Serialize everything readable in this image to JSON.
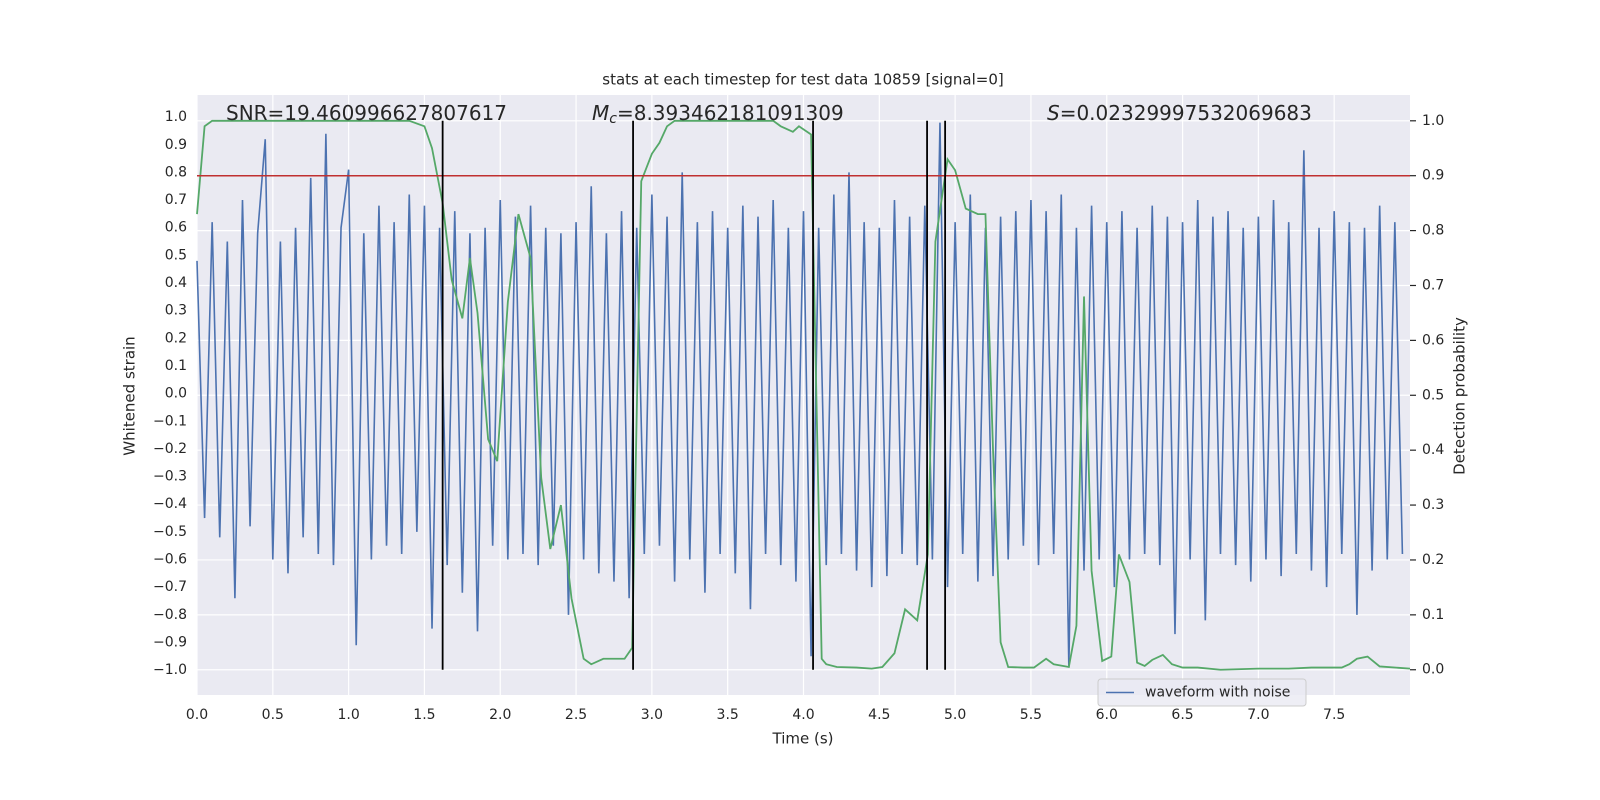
{
  "chart_data": {
    "type": "line",
    "title": "stats at each timestep for test data 10859 [signal=0]",
    "xlabel": "Time (s)",
    "ylabel": "Whitened strain",
    "y2label": "Detection probability",
    "annotations": [
      {
        "text": "SNR=19.460996627807617"
      },
      {
        "symbol": "M",
        "subscript": "c",
        "text": "=8.393462181091309"
      },
      {
        "symbol": "S",
        "text": "=0.02329997532069683"
      }
    ],
    "xlim": [
      0,
      8.0
    ],
    "ylim": [
      -1.09,
      1.08
    ],
    "y2lim": [
      -0.046,
      1.047
    ],
    "xticks": [
      {
        "value": 0,
        "label": "0.0"
      },
      {
        "value": 0.5,
        "label": "0.5"
      },
      {
        "value": 1,
        "label": "1.0"
      },
      {
        "value": 1.5,
        "label": "1.5"
      },
      {
        "value": 2,
        "label": "2.0"
      },
      {
        "value": 2.5,
        "label": "2.5"
      },
      {
        "value": 3,
        "label": "3.0"
      },
      {
        "value": 3.5,
        "label": "3.5"
      },
      {
        "value": 4,
        "label": "4.0"
      },
      {
        "value": 4.5,
        "label": "4.5"
      },
      {
        "value": 5,
        "label": "5.0"
      },
      {
        "value": 5.5,
        "label": "5.5"
      },
      {
        "value": 6,
        "label": "6.0"
      },
      {
        "value": 6.5,
        "label": "6.5"
      },
      {
        "value": 7,
        "label": "7.0"
      },
      {
        "value": 7.5,
        "label": "7.5"
      }
    ],
    "yticks": [
      {
        "value": -1,
        "label": "−1.0"
      },
      {
        "value": -0.9,
        "label": "−0.9"
      },
      {
        "value": -0.8,
        "label": "−0.8"
      },
      {
        "value": -0.7,
        "label": "−0.7"
      },
      {
        "value": -0.6,
        "label": "−0.6"
      },
      {
        "value": -0.5,
        "label": "−0.5"
      },
      {
        "value": -0.4,
        "label": "−0.4"
      },
      {
        "value": -0.3,
        "label": "−0.3"
      },
      {
        "value": -0.2,
        "label": "−0.2"
      },
      {
        "value": -0.1,
        "label": "−0.1"
      },
      {
        "value": 0,
        "label": "0.0"
      },
      {
        "value": 0.1,
        "label": "0.1"
      },
      {
        "value": 0.2,
        "label": "0.2"
      },
      {
        "value": 0.3,
        "label": "0.3"
      },
      {
        "value": 0.4,
        "label": "0.4"
      },
      {
        "value": 0.5,
        "label": "0.5"
      },
      {
        "value": 0.6,
        "label": "0.6"
      },
      {
        "value": 0.7,
        "label": "0.7"
      },
      {
        "value": 0.8,
        "label": "0.8"
      },
      {
        "value": 0.9,
        "label": "0.9"
      },
      {
        "value": 1,
        "label": "1.0"
      }
    ],
    "y2ticks": [
      {
        "value": 0,
        "label": "0.0"
      },
      {
        "value": 0.1,
        "label": "0.1"
      },
      {
        "value": 0.2,
        "label": "0.2"
      },
      {
        "value": 0.3,
        "label": "0.3"
      },
      {
        "value": 0.4,
        "label": "0.4"
      },
      {
        "value": 0.5,
        "label": "0.5"
      },
      {
        "value": 0.6,
        "label": "0.6"
      },
      {
        "value": 0.7,
        "label": "0.7"
      },
      {
        "value": 0.8,
        "label": "0.8"
      },
      {
        "value": 0.9,
        "label": "0.9"
      },
      {
        "value": 1,
        "label": "1.0"
      }
    ],
    "grid": true,
    "legend": "lower right",
    "series": [
      {
        "name": "waveform with noise",
        "color": "#4c72b0",
        "x": [
          0,
          0.05,
          0.1,
          0.15,
          0.2,
          0.25,
          0.3,
          0.35,
          0.4,
          0.45,
          0.5,
          0.55,
          0.6,
          0.65,
          0.7,
          0.75,
          0.8,
          0.85,
          0.9,
          0.95,
          1,
          1.05,
          1.1,
          1.15,
          1.2,
          1.25,
          1.3,
          1.35,
          1.4,
          1.45,
          1.5,
          1.55,
          1.6,
          1.65,
          1.7,
          1.75,
          1.8,
          1.85,
          1.9,
          1.95,
          2,
          2.05,
          2.1,
          2.15,
          2.2,
          2.25,
          2.3,
          2.35,
          2.4,
          2.45,
          2.5,
          2.55,
          2.6,
          2.65,
          2.7,
          2.75,
          2.8,
          2.85,
          2.9,
          2.95,
          3,
          3.05,
          3.1,
          3.15,
          3.2,
          3.25,
          3.3,
          3.35,
          3.4,
          3.45,
          3.5,
          3.55,
          3.6,
          3.65,
          3.7,
          3.75,
          3.8,
          3.85,
          3.9,
          3.95,
          4,
          4.05,
          4.1,
          4.15,
          4.2,
          4.25,
          4.3,
          4.35,
          4.4,
          4.45,
          4.5,
          4.55,
          4.6,
          4.65,
          4.7,
          4.75,
          4.8,
          4.85,
          4.9,
          4.95,
          5,
          5.05,
          5.1,
          5.15,
          5.2,
          5.25,
          5.3,
          5.35,
          5.4,
          5.45,
          5.5,
          5.55,
          5.6,
          5.65,
          5.7,
          5.75,
          5.8,
          5.85,
          5.9,
          5.95,
          6,
          6.05,
          6.1,
          6.15,
          6.2,
          6.25,
          6.3,
          6.35,
          6.4,
          6.45,
          6.5,
          6.55,
          6.6,
          6.65,
          6.7,
          6.75,
          6.8,
          6.85,
          6.9,
          6.95,
          7,
          7.05,
          7.1,
          7.15,
          7.2,
          7.25,
          7.3,
          7.35,
          7.4,
          7.45,
          7.5,
          7.55,
          7.6,
          7.65,
          7.7,
          7.75,
          7.8,
          7.85,
          7.9,
          7.95
        ],
        "values": [
          0.48,
          -0.45,
          0.62,
          -0.52,
          0.55,
          -0.74,
          0.7,
          -0.48,
          0.58,
          0.92,
          -0.6,
          0.55,
          -0.65,
          0.6,
          -0.52,
          0.78,
          -0.58,
          0.94,
          -0.62,
          0.6,
          0.81,
          -0.91,
          0.58,
          -0.6,
          0.68,
          -0.55,
          0.62,
          -0.58,
          0.72,
          -0.5,
          0.68,
          -0.85,
          0.6,
          -0.62,
          0.66,
          -0.72,
          0.58,
          -0.86,
          0.6,
          -0.55,
          0.7,
          -0.6,
          0.64,
          -0.58,
          0.68,
          -0.62,
          0.6,
          -0.55,
          0.58,
          -0.8,
          0.62,
          -0.6,
          0.75,
          -0.65,
          0.58,
          -0.68,
          0.66,
          -0.74,
          0.6,
          -0.58,
          0.72,
          -0.55,
          0.64,
          -0.68,
          0.8,
          -0.6,
          0.62,
          -0.72,
          0.66,
          -0.58,
          0.6,
          -0.65,
          0.68,
          -0.78,
          0.64,
          -0.58,
          0.7,
          -0.62,
          0.6,
          -0.68,
          0.66,
          -0.95,
          0.6,
          -0.62,
          0.72,
          -0.58,
          0.8,
          -0.64,
          0.62,
          -0.7,
          0.6,
          -0.66,
          0.7,
          -0.58,
          0.64,
          -0.62,
          0.68,
          -0.6,
          0.98,
          -0.7,
          0.62,
          -0.58,
          0.72,
          -0.68,
          0.6,
          -0.66,
          0.64,
          -0.6,
          0.66,
          -0.55,
          0.7,
          -0.62,
          0.66,
          -0.58,
          0.72,
          -0.99,
          0.6,
          -0.64,
          0.68,
          -0.6,
          0.62,
          -0.7,
          0.66,
          -0.6,
          0.6,
          -0.58,
          0.68,
          -0.62,
          0.64,
          -0.87,
          0.62,
          -0.6,
          0.7,
          -0.82,
          0.64,
          -0.58,
          0.66,
          -0.62,
          0.6,
          -0.68,
          0.64,
          -0.6,
          0.7,
          -0.66,
          0.62,
          -0.58,
          0.88,
          -0.64,
          0.6,
          -0.7,
          0.66,
          -0.58,
          0.62,
          -0.8,
          0.6,
          -0.64,
          0.68,
          -0.6,
          0.62,
          -0.58
        ]
      },
      {
        "color": "#55a868",
        "axis": "y2",
        "x": [
          0,
          0.05,
          0.1,
          1.4,
          1.5,
          1.55,
          1.62,
          1.68,
          1.75,
          1.8,
          1.85,
          1.92,
          1.98,
          2.05,
          2.12,
          2.2,
          2.27,
          2.33,
          2.4,
          2.47,
          2.55,
          2.6,
          2.68,
          2.75,
          2.82,
          2.87,
          2.93,
          3,
          3.05,
          3.1,
          3.15,
          3.8,
          3.85,
          3.93,
          3.97,
          4.05,
          4.12,
          4.15,
          4.22,
          4.35,
          4.45,
          4.52,
          4.6,
          4.67,
          4.75,
          4.82,
          4.87,
          4.95,
          5,
          5.07,
          5.15,
          5.2,
          5.25,
          5.3,
          5.35,
          5.45,
          5.52,
          5.6,
          5.65,
          5.75,
          5.8,
          5.85,
          5.9,
          5.97,
          6.03,
          6.08,
          6.15,
          6.2,
          6.25,
          6.3,
          6.37,
          6.43,
          6.5,
          6.6,
          6.75,
          7,
          7.2,
          7.35,
          7.5,
          7.55,
          7.6,
          7.65,
          7.72,
          7.8,
          8.0
        ],
        "values": [
          0.83,
          0.99,
          1.0,
          1.0,
          0.99,
          0.95,
          0.85,
          0.71,
          0.64,
          0.75,
          0.65,
          0.42,
          0.38,
          0.67,
          0.83,
          0.75,
          0.35,
          0.22,
          0.3,
          0.13,
          0.02,
          0.01,
          0.02,
          0.02,
          0.02,
          0.04,
          0.89,
          0.94,
          0.96,
          0.99,
          1.0,
          1.0,
          0.99,
          0.98,
          0.99,
          0.975,
          0.02,
          0.01,
          0.005,
          0.004,
          0.002,
          0.005,
          0.03,
          0.11,
          0.09,
          0.21,
          0.78,
          0.93,
          0.91,
          0.84,
          0.83,
          0.83,
          0.4,
          0.05,
          0.005,
          0.004,
          0.004,
          0.02,
          0.01,
          0.005,
          0.08,
          0.68,
          0.18,
          0.016,
          0.024,
          0.21,
          0.16,
          0.013,
          0.007,
          0.018,
          0.027,
          0.01,
          0.004,
          0.004,
          0.0,
          0.002,
          0.002,
          0.004,
          0.004,
          0.004,
          0.01,
          0.02,
          0.024,
          0.006,
          0.002
        ]
      }
    ],
    "vlines": [
      1.62,
      2.876,
      4.063,
      4.815,
      4.934
    ],
    "vline_color": "#000000",
    "vline_range": [
      0,
      1
    ],
    "hline": 0.9,
    "hline_color": "#c03030"
  }
}
